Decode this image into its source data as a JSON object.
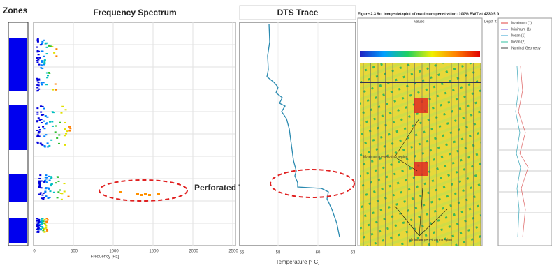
{
  "zones": {
    "title": "Zones"
  },
  "frequency_spectrum": {
    "title": "Frequency Spectrum",
    "x_ticks": [
      "0",
      "500",
      "1000",
      "1500",
      "2000",
      "2500"
    ],
    "x_label": "Frequency [Hz]"
  },
  "dts_trace": {
    "title": "DTS Trace",
    "x_ticks": [
      "55",
      "58",
      "60",
      "63"
    ],
    "x_label": "Temperature [° C]"
  },
  "annotation": "Perforated Tubing",
  "image_panel": {
    "caption": "Figure 2.3 9c: Image dataplot of maximum penetration: 100% BWT at 4230.5 ft",
    "header": "Values",
    "depth_label": "Depth ft",
    "region_labels": [
      "Maximum penetration region",
      "Minimum penetration region"
    ]
  },
  "log_panel": {
    "legend": [
      "Maximum (1)",
      "Minimum (1)",
      "Mean (1)",
      "Mean (2)",
      "Nominal Geometry"
    ]
  }
}
